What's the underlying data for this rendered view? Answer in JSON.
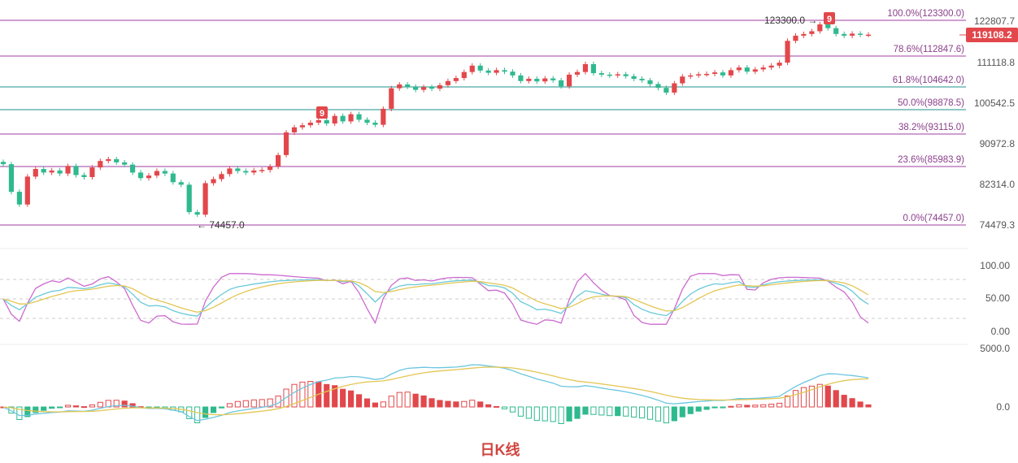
{
  "chart_data": {
    "type": "candlestick",
    "period_label": "日K线",
    "colors": {
      "up": "#e2474b",
      "down": "#2fb98e",
      "fib_line": "#b565b5",
      "fib_line_mid": "#4aa6a0",
      "k_line": "#cc6ad0",
      "d_line": "#69c9d9",
      "j_line": "#e3c653",
      "dif_line": "#6cc6df",
      "dea_line": "#e3c653"
    },
    "price_axis": {
      "ticks": [
        "122807.7",
        "111118.8",
        "100542.5",
        "90972.8",
        "82314.0",
        "74479.3"
      ],
      "current_price": "119108.2"
    },
    "fib_levels": [
      {
        "label": "100.0%(123300.0)",
        "value": 123300.0
      },
      {
        "label": "78.6%(112847.6)",
        "value": 112847.6
      },
      {
        "label": "61.8%(104642.0)",
        "value": 104642.0
      },
      {
        "label": "50.0%(98878.5)",
        "value": 98878.5
      },
      {
        "label": "38.2%(93115.0)",
        "value": 93115.0
      },
      {
        "label": "23.6%(85983.9)",
        "value": 85983.9
      },
      {
        "label": "0.0%(74457.0)",
        "value": 74457.0
      }
    ],
    "annotations": {
      "high_label": "123300.0",
      "low_label": "74457.0",
      "td_markers": [
        "9",
        "9"
      ]
    },
    "kdj_axis": {
      "ticks": [
        "100.00",
        "50.00",
        "0.00"
      ]
    },
    "macd_axis": {
      "ticks": [
        "5000.0",
        "0.0"
      ]
    },
    "closes": [
      86500,
      81000,
      78500,
      84000,
      85500,
      84800,
      85200,
      84600,
      86100,
      84300,
      83900,
      85800,
      87200,
      87600,
      86900,
      86400,
      84800,
      83700,
      84200,
      85100,
      84600,
      82900,
      82400,
      77000,
      76500,
      82700,
      83500,
      84500,
      85600,
      85100,
      84800,
      85200,
      85300,
      86000,
      88500,
      93500,
      94700,
      95200,
      95800,
      96400,
      95600,
      97400,
      96100,
      97800,
      96500,
      95800,
      95300,
      99100,
      104300,
      105300,
      104700,
      103900,
      104600,
      104200,
      105100,
      106200,
      107000,
      108600,
      110300,
      109000,
      108400,
      109100,
      108700,
      107700,
      106200,
      106800,
      106100,
      106900,
      106400,
      104800,
      107900,
      108600,
      110700,
      108300,
      107900,
      107700,
      108000,
      107500,
      106800,
      106400,
      105400,
      104400,
      103200,
      105600,
      107400,
      107700,
      108000,
      108100,
      108500,
      107700,
      109100,
      109800,
      108700,
      109300,
      109800,
      110300,
      111100,
      117300,
      118800,
      119300,
      120100,
      122100,
      121000,
      119300,
      118800,
      119400,
      119100,
      119108
    ]
  }
}
